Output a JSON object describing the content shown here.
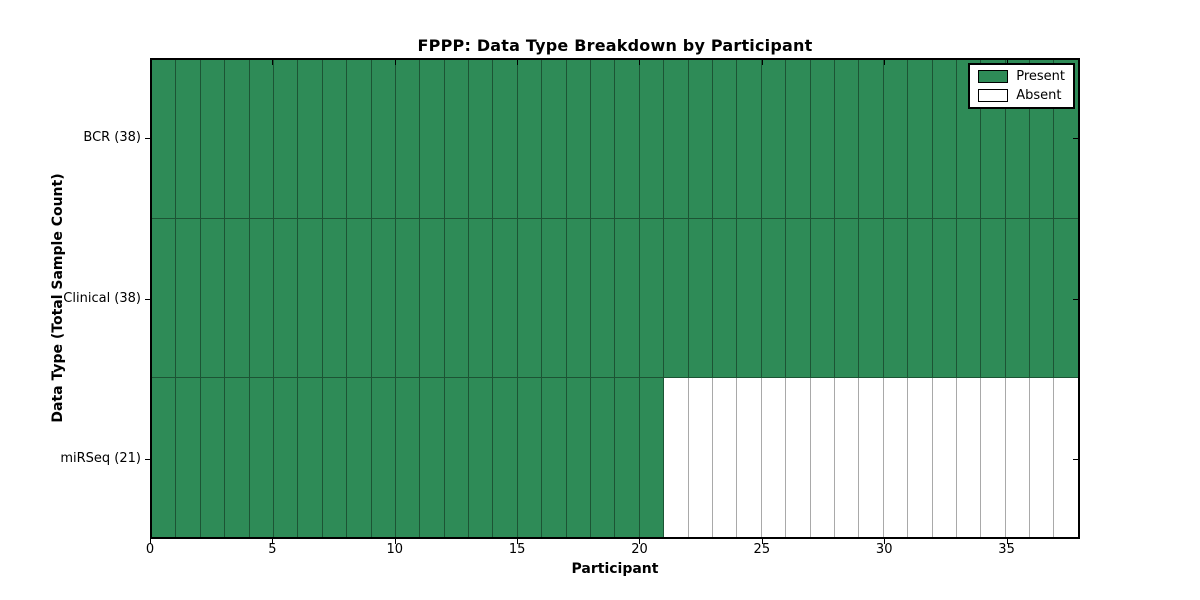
{
  "chart_data": {
    "type": "heatmap",
    "title": "FPPP: Data Type Breakdown by Participant",
    "xlabel": "Participant",
    "ylabel": "Data Type (Total Sample Count)",
    "x_range": [
      0,
      38
    ],
    "x_ticks": [
      0,
      5,
      10,
      15,
      20,
      25,
      30,
      35
    ],
    "n_participants": 38,
    "rows": [
      {
        "label": "BCR (38)",
        "data_type": "BCR",
        "total_sample_count": 38,
        "present_count": 38,
        "absent_count": 0
      },
      {
        "label": "Clinical (38)",
        "data_type": "Clinical",
        "total_sample_count": 38,
        "present_count": 38,
        "absent_count": 0
      },
      {
        "label": "miRSeq (21)",
        "data_type": "miRSeq",
        "total_sample_count": 21,
        "present_count": 21,
        "absent_count": 17
      }
    ],
    "legend": {
      "position": "upper-right",
      "entries": [
        {
          "label": "Present",
          "color": "#2E8B57"
        },
        {
          "label": "Absent",
          "color": "#FFFFFF"
        }
      ]
    },
    "colors": {
      "present_fill": "#2E8B57",
      "absent_fill": "#FFFFFF",
      "present_edge": "#1C5434",
      "absent_edge": "#A9A9A9",
      "frame": "#000000"
    },
    "grid": "cell-borders"
  }
}
